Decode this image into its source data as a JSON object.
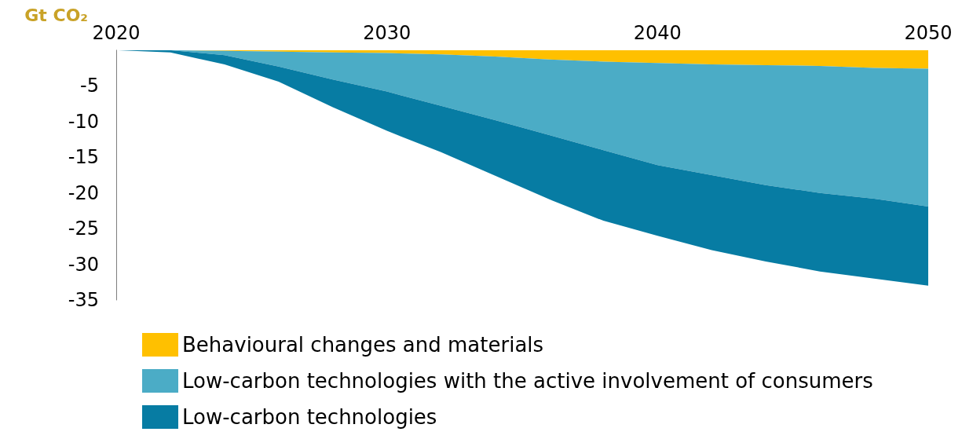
{
  "chart_data": {
    "type": "area",
    "stacked": true,
    "ylabel": "Gt CO₂",
    "x": [
      2020,
      2022,
      2024,
      2026,
      2028,
      2030,
      2032,
      2034,
      2036,
      2038,
      2040,
      2042,
      2044,
      2046,
      2048,
      2050
    ],
    "xlim": [
      2020,
      2050
    ],
    "xticks": [
      2020,
      2030,
      2040,
      2050
    ],
    "ylim": [
      -35,
      0
    ],
    "yticks": [
      -35,
      -30,
      -25,
      -20,
      -15,
      -10,
      -5
    ],
    "grid": false,
    "legend": "bottom",
    "series": [
      {
        "name": "Behavioural changes and materials",
        "color": "#ffc000",
        "values": [
          0,
          0,
          -0.1,
          -0.2,
          -0.3,
          -0.4,
          -0.6,
          -0.9,
          -1.3,
          -1.6,
          -1.8,
          -2,
          -2.1,
          -2.2,
          -2.5,
          -2.6
        ]
      },
      {
        "name": "Low-carbon technologies with the active involvement of consumers",
        "color": "#4bacc6",
        "values": [
          0,
          0,
          -0.6,
          -2.1,
          -3.8,
          -5.4,
          -7.2,
          -8.9,
          -10.6,
          -12.4,
          -14.3,
          -15.5,
          -16.8,
          -17.8,
          -18.3,
          -19.3
        ]
      },
      {
        "name": "Low-carbon technologies",
        "color": "#077ca3",
        "values": [
          0,
          -0.3,
          -1.3,
          -2.1,
          -3.9,
          -5.5,
          -6.5,
          -7.8,
          -9,
          -9.9,
          -9.9,
          -10.5,
          -10.7,
          -11,
          -11.2,
          -11.1
        ]
      }
    ]
  }
}
